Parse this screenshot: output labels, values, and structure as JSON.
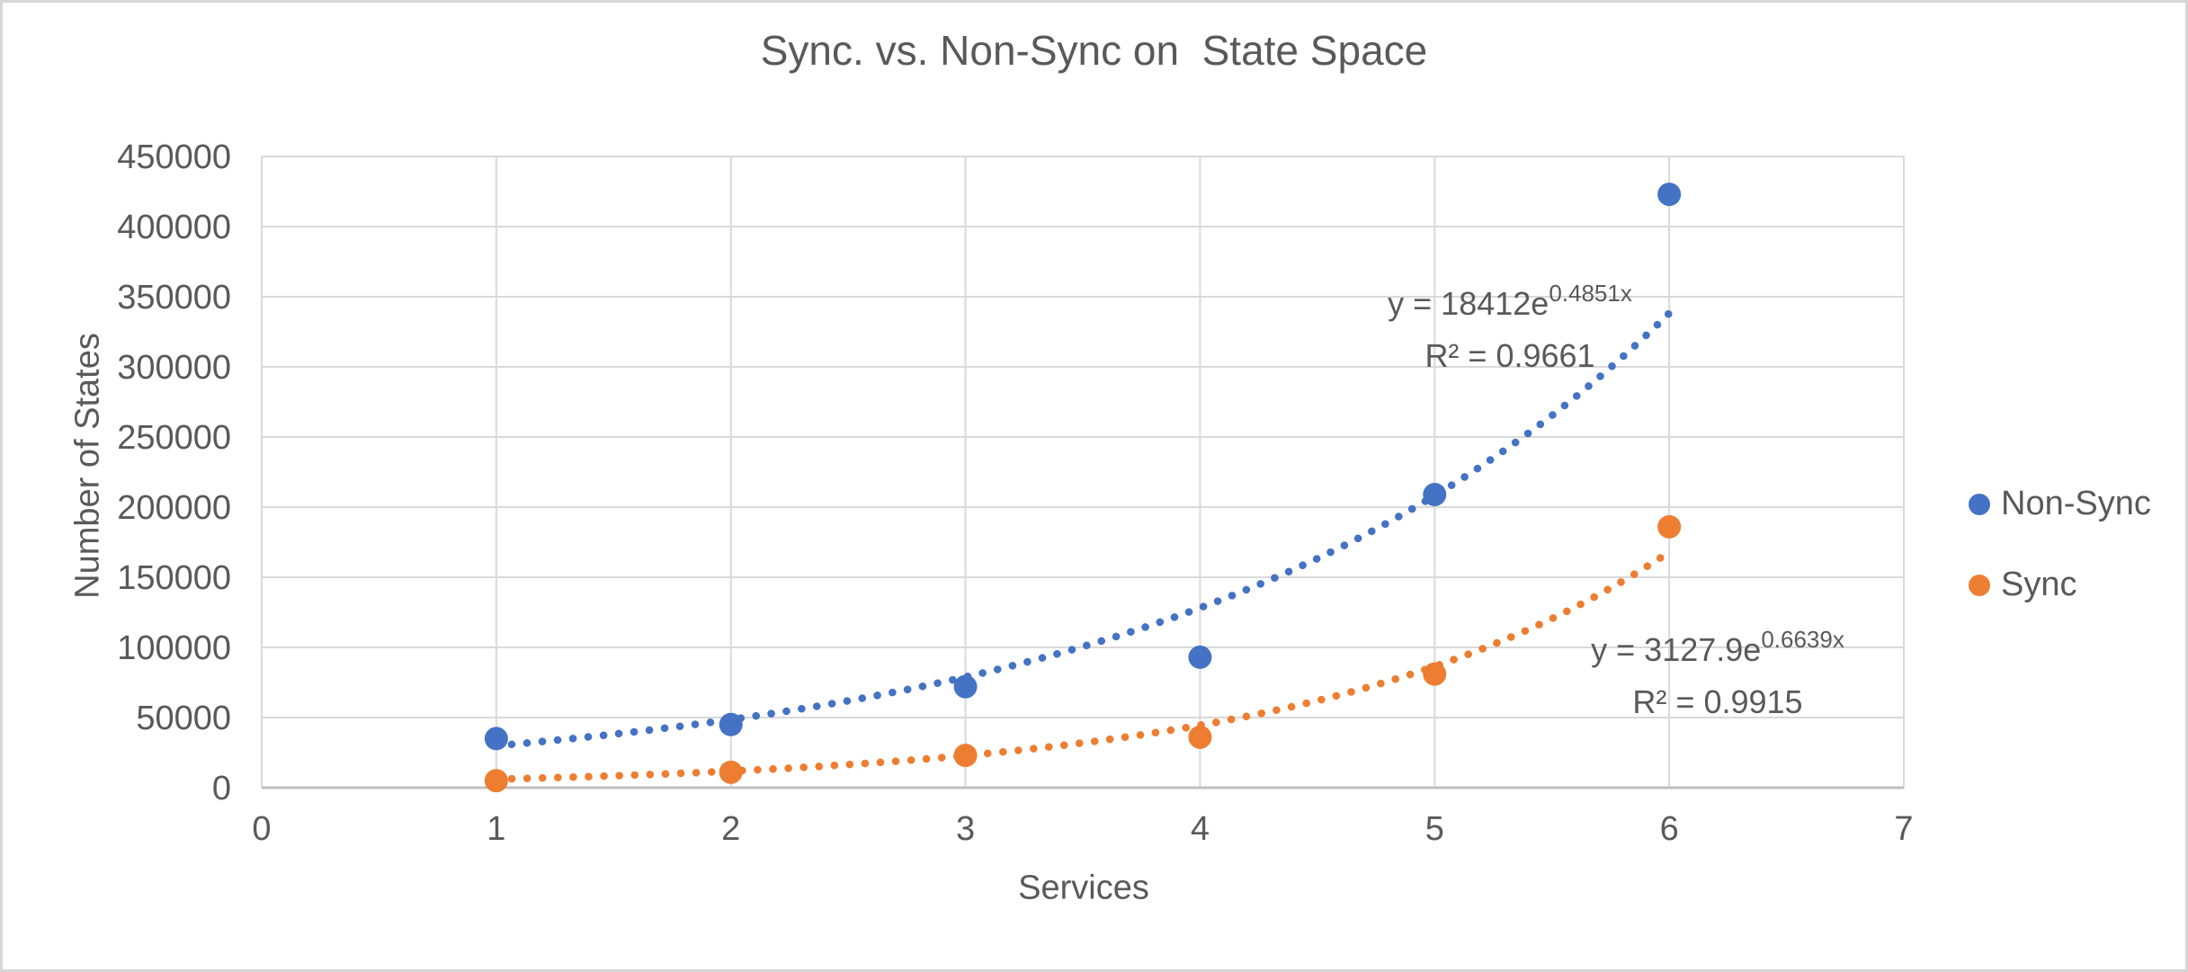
{
  "chart_data": {
    "type": "scatter",
    "title": "Sync. vs. Non-Sync on  State Space",
    "xlabel": "Services",
    "ylabel": "Number of States",
    "xlim": [
      0,
      7
    ],
    "ylim": [
      0,
      450000
    ],
    "xticks": [
      0,
      1,
      2,
      3,
      4,
      5,
      6,
      7
    ],
    "yticks": [
      0,
      50000,
      100000,
      150000,
      200000,
      250000,
      300000,
      350000,
      400000,
      450000
    ],
    "grid": true,
    "legend_position": "right",
    "colors": {
      "text": "#595959",
      "gridline": "#d9d9d9",
      "axis_line": "#bfbfbf"
    },
    "series": [
      {
        "name": "Non-Sync",
        "color": "#4472C4",
        "x": [
          1,
          2,
          3,
          4,
          5,
          6
        ],
        "y": [
          35000,
          45000,
          72000,
          93000,
          209000,
          423000
        ],
        "trendline": {
          "type": "exponential",
          "a": 18412,
          "b": 0.4851,
          "x_range": [
            1,
            6
          ],
          "equation_base": "y = 18412e",
          "equation_exponent": "0.4851x",
          "r_squared": "R² = 0.9661"
        }
      },
      {
        "name": "Sync",
        "color": "#ED7D31",
        "x": [
          1,
          2,
          3,
          4,
          5,
          6
        ],
        "y": [
          5000,
          11000,
          23000,
          36000,
          81000,
          186000
        ],
        "trendline": {
          "type": "exponential",
          "a": 3127.9,
          "b": 0.6639,
          "x_range": [
            1,
            6
          ],
          "equation_base": "y = 3127.9e",
          "equation_exponent": "0.6639x",
          "r_squared": "R² = 0.9915"
        }
      }
    ]
  }
}
